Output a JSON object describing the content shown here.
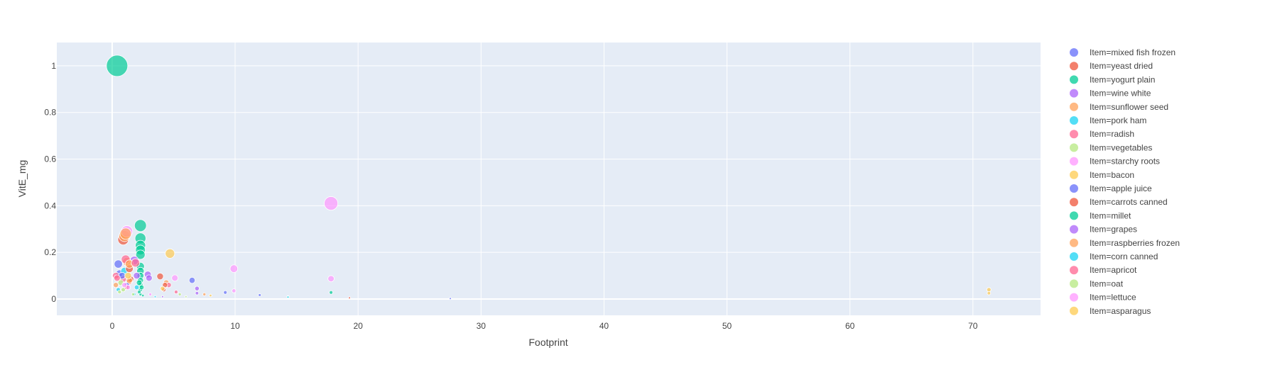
{
  "chart_data": {
    "type": "scatter",
    "title": "",
    "xlabel": "Footprint",
    "ylabel": "VitE_mg",
    "xlim": [
      -4.5,
      75.5
    ],
    "ylim": [
      -0.07,
      1.1
    ],
    "x_ticks": [
      0,
      10,
      20,
      30,
      40,
      50,
      60,
      70
    ],
    "y_ticks": [
      0,
      0.2,
      0.4,
      0.6,
      0.8,
      1
    ],
    "grid": true,
    "legend_position": "right",
    "background": "#E5ECF6",
    "size_encoding": "VitE_mg",
    "series": [
      {
        "name": "Item=mixed fish frozen",
        "color": "#636EFA",
        "points": [
          [
            0.5,
            0.15
          ],
          [
            0.6,
            0.11
          ],
          [
            6.5,
            0.08
          ],
          [
            9.2,
            0.028
          ],
          [
            12.0,
            0.017
          ]
        ]
      },
      {
        "name": "Item=yeast dried",
        "color": "#EF553B",
        "points": [
          [
            0.9,
            0.255
          ],
          [
            3.9,
            0.097
          ],
          [
            1.4,
            0.075
          ],
          [
            4.2,
            0.04
          ],
          [
            19.3,
            0.005
          ]
        ]
      },
      {
        "name": "Item=yogurt plain",
        "color": "#00CC96",
        "points": [
          [
            0.4,
            1.0
          ],
          [
            2.3,
            0.315
          ],
          [
            2.3,
            0.26
          ],
          [
            2.3,
            0.23
          ],
          [
            2.3,
            0.21
          ],
          [
            2.3,
            0.19
          ],
          [
            2.3,
            0.14
          ],
          [
            2.3,
            0.12
          ],
          [
            2.3,
            0.1
          ],
          [
            2.3,
            0.08
          ],
          [
            2.3,
            0.06
          ],
          [
            2.3,
            0.04
          ],
          [
            17.8,
            0.028
          ],
          [
            2.3,
            0.02
          ],
          [
            14.3,
            0.01
          ]
        ]
      },
      {
        "name": "Item=wine white",
        "color": "#AB63FA",
        "points": [
          [
            1.8,
            0.165
          ],
          [
            2.9,
            0.105
          ],
          [
            6.9,
            0.045
          ],
          [
            6.9,
            0.025
          ]
        ]
      },
      {
        "name": "Item=sunflower seed",
        "color": "#FFA15A",
        "points": [
          [
            1.0,
            0.27
          ],
          [
            1.2,
            0.16
          ],
          [
            4.4,
            0.07
          ],
          [
            0.3,
            0.06
          ]
        ]
      },
      {
        "name": "Item=pork ham",
        "color": "#19D3F3",
        "points": [
          [
            1.0,
            0.12
          ],
          [
            2.0,
            0.05
          ],
          [
            14.3,
            0.008
          ]
        ]
      },
      {
        "name": "Item=radish",
        "color": "#FF6692",
        "points": [
          [
            1.1,
            0.17
          ],
          [
            0.9,
            0.085
          ],
          [
            4.6,
            0.06
          ],
          [
            0.3,
            0.1
          ]
        ]
      },
      {
        "name": "Item=vegetables",
        "color": "#B6E880",
        "points": [
          [
            0.7,
            0.07
          ],
          [
            0.9,
            0.04
          ],
          [
            5.5,
            0.02
          ]
        ]
      },
      {
        "name": "Item=starchy roots",
        "color": "#FF97FF",
        "points": [
          [
            17.8,
            0.41
          ],
          [
            1.2,
            0.29
          ],
          [
            9.9,
            0.13
          ],
          [
            5.1,
            0.09
          ],
          [
            17.8,
            0.087
          ],
          [
            9.9,
            0.035
          ]
        ]
      },
      {
        "name": "Item=bacon",
        "color": "#FECB52",
        "points": [
          [
            4.7,
            0.195
          ],
          [
            71.3,
            0.04
          ],
          [
            71.3,
            0.025
          ]
        ]
      },
      {
        "name": "Item=apple juice",
        "color": "#636EFA",
        "points": [
          [
            0.8,
            0.1
          ],
          [
            1.2,
            0.06
          ],
          [
            27.5,
            0.002
          ]
        ]
      },
      {
        "name": "Item=carrots canned",
        "color": "#EF553B",
        "points": [
          [
            1.4,
            0.13
          ],
          [
            1.5,
            0.085
          ],
          [
            4.3,
            0.06
          ],
          [
            1.2,
            0.05
          ]
        ]
      },
      {
        "name": "Item=millet",
        "color": "#00CC96",
        "points": [
          [
            2.2,
            0.07
          ],
          [
            2.4,
            0.05
          ],
          [
            2.2,
            0.03
          ],
          [
            2.5,
            0.015
          ]
        ]
      },
      {
        "name": "Item=grapes",
        "color": "#AB63FA",
        "points": [
          [
            2.0,
            0.1
          ],
          [
            3.0,
            0.09
          ],
          [
            4.1,
            0.01
          ]
        ]
      },
      {
        "name": "Item=raspberries frozen",
        "color": "#FFA15A",
        "points": [
          [
            1.1,
            0.28
          ],
          [
            1.4,
            0.15
          ],
          [
            1.4,
            0.08
          ],
          [
            7.5,
            0.02
          ]
        ]
      },
      {
        "name": "Item=corn canned",
        "color": "#19D3F3",
        "points": [
          [
            0.5,
            0.04
          ],
          [
            1.8,
            0.02
          ],
          [
            3.5,
            0.01
          ]
        ]
      },
      {
        "name": "Item=apricot",
        "color": "#FF6692",
        "points": [
          [
            1.9,
            0.155
          ],
          [
            0.4,
            0.09
          ],
          [
            5.2,
            0.03
          ]
        ]
      },
      {
        "name": "Item=oat",
        "color": "#B6E880",
        "points": [
          [
            0.6,
            0.03
          ],
          [
            1.7,
            0.02
          ],
          [
            6.0,
            0.01
          ]
        ]
      },
      {
        "name": "Item=lettuce",
        "color": "#FF97FF",
        "points": [
          [
            1.0,
            0.06
          ],
          [
            1.3,
            0.05
          ],
          [
            3.1,
            0.02
          ]
        ]
      },
      {
        "name": "Item=asparagus",
        "color": "#FECB52",
        "points": [
          [
            1.3,
            0.1
          ],
          [
            4.1,
            0.045
          ],
          [
            8.0,
            0.015
          ]
        ]
      }
    ]
  }
}
